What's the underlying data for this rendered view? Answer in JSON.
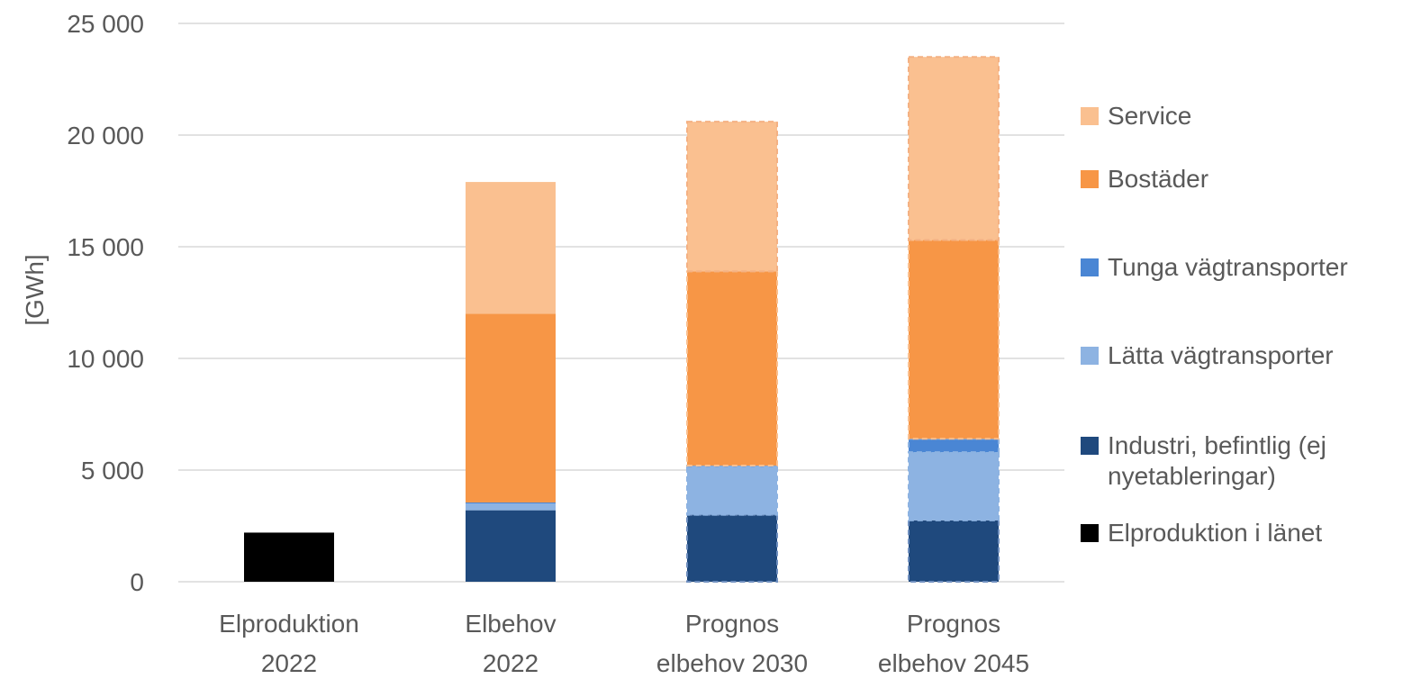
{
  "chart_data": {
    "type": "bar",
    "stacked": true,
    "ylabel": "[GWh]",
    "ylim": [
      0,
      25000
    ],
    "yticks": [
      0,
      5000,
      10000,
      15000,
      20000,
      25000
    ],
    "ytick_labels": [
      "0",
      "5 000",
      "10 000",
      "15 000",
      "20 000",
      "25 000"
    ],
    "grid": true,
    "legend_position": "right",
    "categories": [
      [
        "Elproduktion",
        "2022"
      ],
      [
        "Elbehov",
        "2022"
      ],
      [
        "Prognos",
        "elbehov 2030"
      ],
      [
        "Prognos",
        "elbehov 2045"
      ]
    ],
    "forecast_categories": [
      2,
      3
    ],
    "series": [
      {
        "name": "Elproduktion i länet",
        "color": "#000000",
        "values": [
          2200,
          0,
          0,
          0
        ]
      },
      {
        "name": "Industri, befintlig (ej\nnyetableringar)",
        "color": "#1f497d",
        "values": [
          0,
          3200,
          3000,
          2750
        ]
      },
      {
        "name": "Lätta vägtransporter",
        "color": "#8db3e2",
        "values": [
          0,
          300,
          2150,
          3050
        ]
      },
      {
        "name": "Tunga vägtransporter",
        "color": "#4a86d4",
        "values": [
          0,
          50,
          50,
          600
        ]
      },
      {
        "name": "Bostäder",
        "color": "#f79646",
        "values": [
          0,
          8450,
          8700,
          8900
        ]
      },
      {
        "name": "Service",
        "color": "#fac090",
        "values": [
          0,
          5900,
          6700,
          8200
        ]
      }
    ],
    "legend_order": [
      5,
      4,
      3,
      2,
      1,
      0
    ]
  }
}
